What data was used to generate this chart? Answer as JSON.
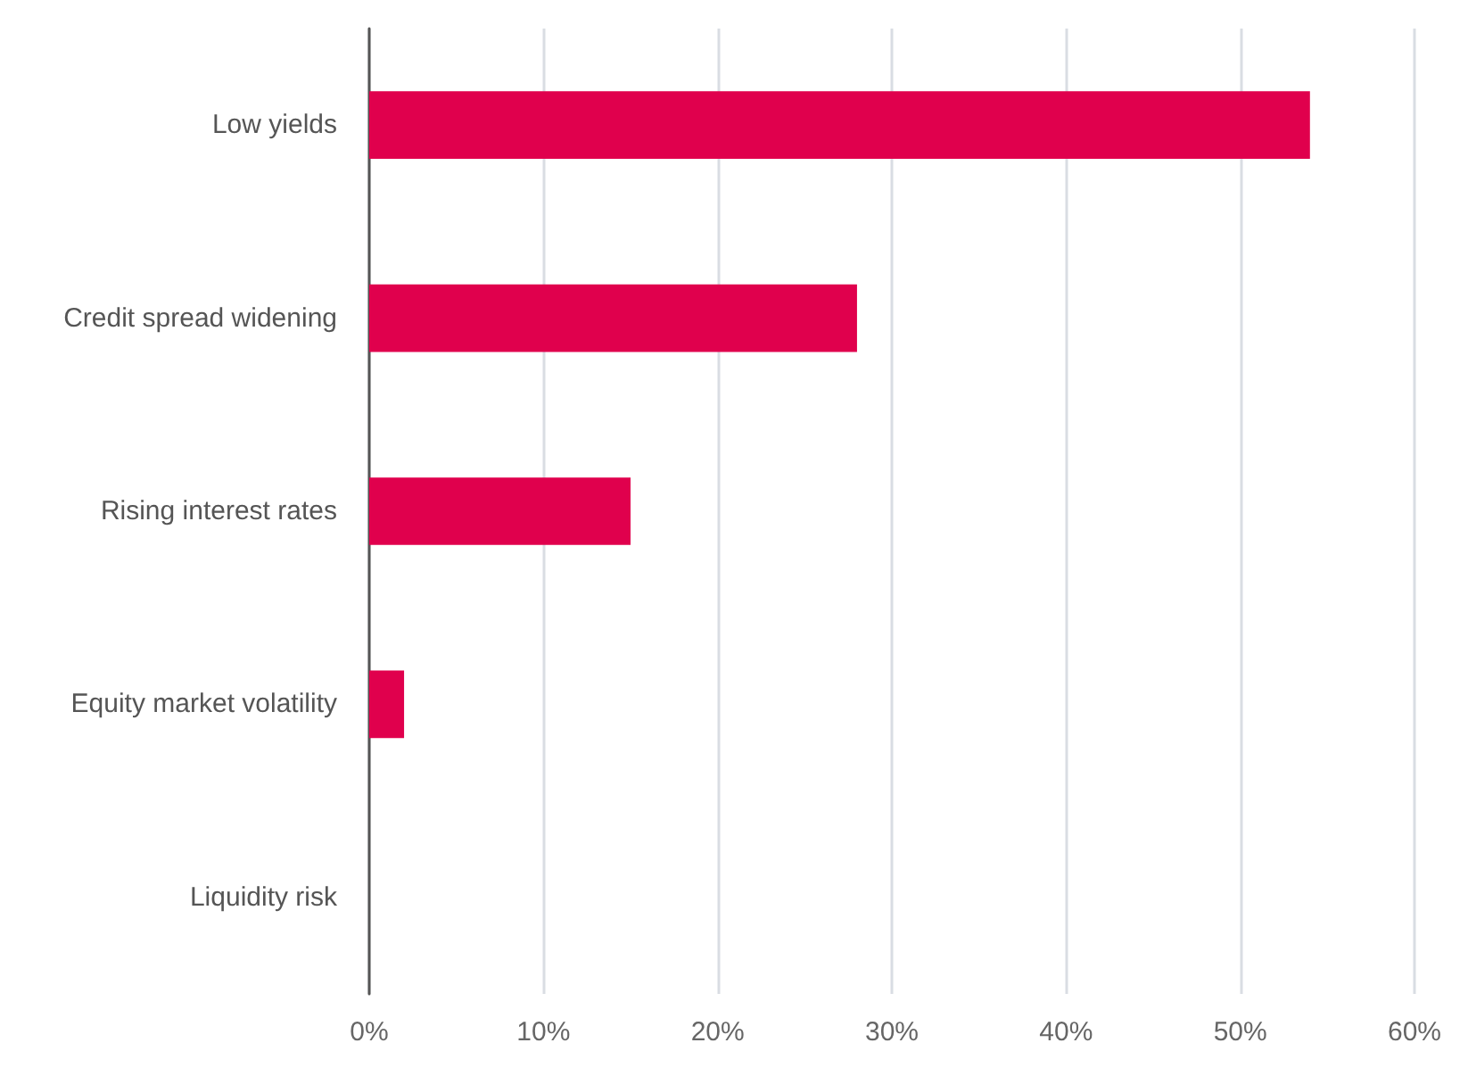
{
  "chart_data": {
    "type": "bar",
    "orientation": "horizontal",
    "categories": [
      "Low yields",
      "Credit spread widening",
      "Rising interest rates",
      "Equity market volatility",
      "Liquidity risk"
    ],
    "values": [
      54,
      28,
      15,
      2,
      0
    ],
    "color": "#e0004d",
    "xlim": [
      0,
      60
    ],
    "xticks": [
      {
        "value": 0,
        "label": "0%"
      },
      {
        "value": 10,
        "label": "10%"
      },
      {
        "value": 20,
        "label": "20%"
      },
      {
        "value": 30,
        "label": "30%"
      },
      {
        "value": 40,
        "label": "40%"
      },
      {
        "value": 50,
        "label": "50%"
      },
      {
        "value": 60,
        "label": "60%"
      }
    ],
    "grid": "x"
  }
}
